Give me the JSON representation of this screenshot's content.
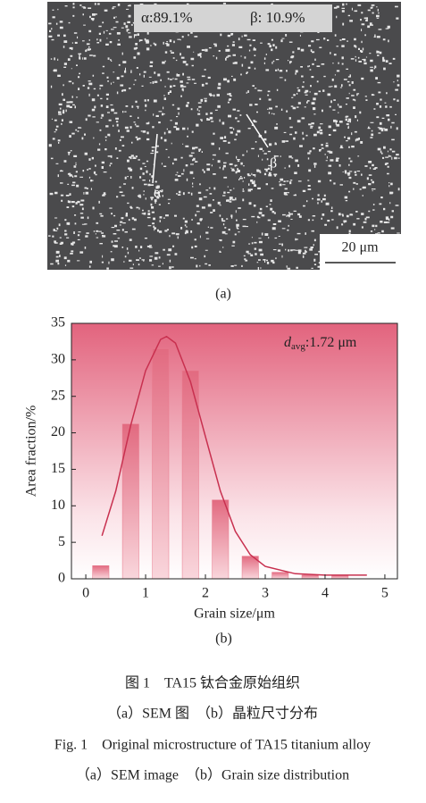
{
  "sem": {
    "phase_alpha": "α:89.1%",
    "phase_beta": "β: 10.9%",
    "pointer_alpha": "α",
    "pointer_beta": "β",
    "scale_bar": "20 μm",
    "panel_label": "(a)"
  },
  "chart_data": {
    "type": "histogram",
    "panel_label": "(b)",
    "xlabel": "Grain size/μm",
    "ylabel": "Area fraction/%",
    "annotation": {
      "symbol": "d",
      "subscript": "avg",
      "text": ":1.72 μm"
    },
    "bins": [
      0,
      0.5,
      1,
      1.5,
      2,
      2.5,
      3,
      3.5,
      4,
      4.5
    ],
    "values": [
      1.8,
      21.2,
      31.5,
      28.5,
      10.8,
      3.1,
      0.9,
      0.5,
      0.5
    ],
    "color": "#e8798c",
    "fit": {
      "color": "#c8304f",
      "x": [
        0.27,
        0.5,
        0.75,
        1.0,
        1.25,
        1.35,
        1.5,
        1.75,
        2.0,
        2.25,
        2.5,
        2.75,
        3.0,
        3.5,
        4.0,
        4.5,
        4.7
      ],
      "values": [
        5.9,
        12,
        21,
        28.5,
        32.8,
        33.2,
        32.3,
        27,
        19.5,
        12,
        6.5,
        3.3,
        1.7,
        0.7,
        0.5,
        0.5,
        0.5
      ]
    },
    "xlim": [
      -0.24,
      5.21
    ],
    "ylim": [
      0,
      35
    ],
    "xticks": [
      0,
      1,
      2,
      3,
      4,
      5
    ],
    "yticks": [
      0,
      5,
      10,
      15,
      20,
      25,
      30,
      35
    ]
  },
  "caption": {
    "cn_title": "图 1　TA15 钛合金原始组织",
    "cn_sub": "（a）SEM 图　（b）晶粒尺寸分布",
    "en_title": "Fig. 1　Original microstructure of TA15 titanium alloy",
    "en_sub": "（a）SEM image　（b）Grain size distribution"
  }
}
